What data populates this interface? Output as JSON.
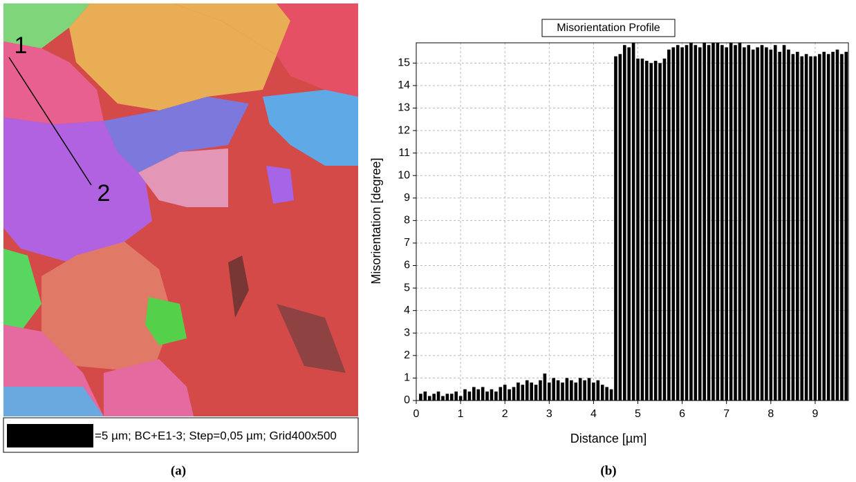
{
  "image": {
    "marker_1": "1",
    "marker_2": "2",
    "scale_caption": "=5 µm; BC+E1-3; Step=0,05 µm; Grid400x500"
  },
  "panel_labels": [
    "(a)",
    "(b)"
  ],
  "chart_data": {
    "type": "bar",
    "title": "Misorientation Profile",
    "x_label": "Distance [µm]",
    "y_label": "Misorientation [degree]",
    "color": "#000000",
    "grid": true,
    "xlim": [
      0,
      9.75
    ],
    "ylim": [
      0,
      15.9
    ],
    "xticks": [
      0,
      1,
      2,
      3,
      4,
      5,
      6,
      7,
      8,
      9
    ],
    "yticks": [
      0,
      1,
      2,
      3,
      4,
      5,
      6,
      7,
      8,
      9,
      10,
      11,
      12,
      13,
      14,
      15
    ],
    "x": [
      0.1,
      0.2,
      0.3,
      0.4,
      0.5,
      0.6,
      0.7,
      0.8,
      0.9,
      1.0,
      1.1,
      1.2,
      1.3,
      1.4,
      1.5,
      1.6,
      1.7,
      1.8,
      1.9,
      2.0,
      2.1,
      2.2,
      2.3,
      2.4,
      2.5,
      2.6,
      2.7,
      2.8,
      2.9,
      3.0,
      3.1,
      3.2,
      3.3,
      3.4,
      3.5,
      3.6,
      3.7,
      3.8,
      3.9,
      4.0,
      4.1,
      4.2,
      4.3,
      4.4,
      4.5,
      4.6,
      4.7,
      4.8,
      4.9,
      5.0,
      5.1,
      5.2,
      5.3,
      5.4,
      5.5,
      5.6,
      5.7,
      5.8,
      5.9,
      6.0,
      6.1,
      6.2,
      6.3,
      6.4,
      6.5,
      6.6,
      6.7,
      6.8,
      6.9,
      7.0,
      7.1,
      7.2,
      7.3,
      7.4,
      7.5,
      7.6,
      7.7,
      7.8,
      7.9,
      8.0,
      8.1,
      8.2,
      8.3,
      8.4,
      8.5,
      8.6,
      8.7,
      8.8,
      8.9,
      9.0,
      9.1,
      9.2,
      9.3,
      9.4,
      9.5,
      9.6,
      9.7
    ],
    "values": [
      0.3,
      0.4,
      0.2,
      0.3,
      0.4,
      0.2,
      0.3,
      0.3,
      0.4,
      0.2,
      0.5,
      0.4,
      0.6,
      0.5,
      0.6,
      0.4,
      0.5,
      0.4,
      0.6,
      0.7,
      0.5,
      0.6,
      0.8,
      0.7,
      0.9,
      0.8,
      0.7,
      0.9,
      1.2,
      0.8,
      1.0,
      0.9,
      0.8,
      1.0,
      0.9,
      0.8,
      1.0,
      0.9,
      1.0,
      0.8,
      0.9,
      0.7,
      0.6,
      0.5,
      15.3,
      15.4,
      15.8,
      15.7,
      15.9,
      15.2,
      15.2,
      15.1,
      15.0,
      15.1,
      15.0,
      15.2,
      15.6,
      15.7,
      15.8,
      15.7,
      15.8,
      15.9,
      15.8,
      15.7,
      15.9,
      15.8,
      15.9,
      15.9,
      15.8,
      15.7,
      15.9,
      15.8,
      15.9,
      15.7,
      15.8,
      15.6,
      15.7,
      15.8,
      15.7,
      15.6,
      15.8,
      15.5,
      15.8,
      15.6,
      15.4,
      15.5,
      15.3,
      15.4,
      15.3,
      15.3,
      15.4,
      15.5,
      15.4,
      15.5,
      15.6,
      15.4,
      15.5
    ]
  }
}
